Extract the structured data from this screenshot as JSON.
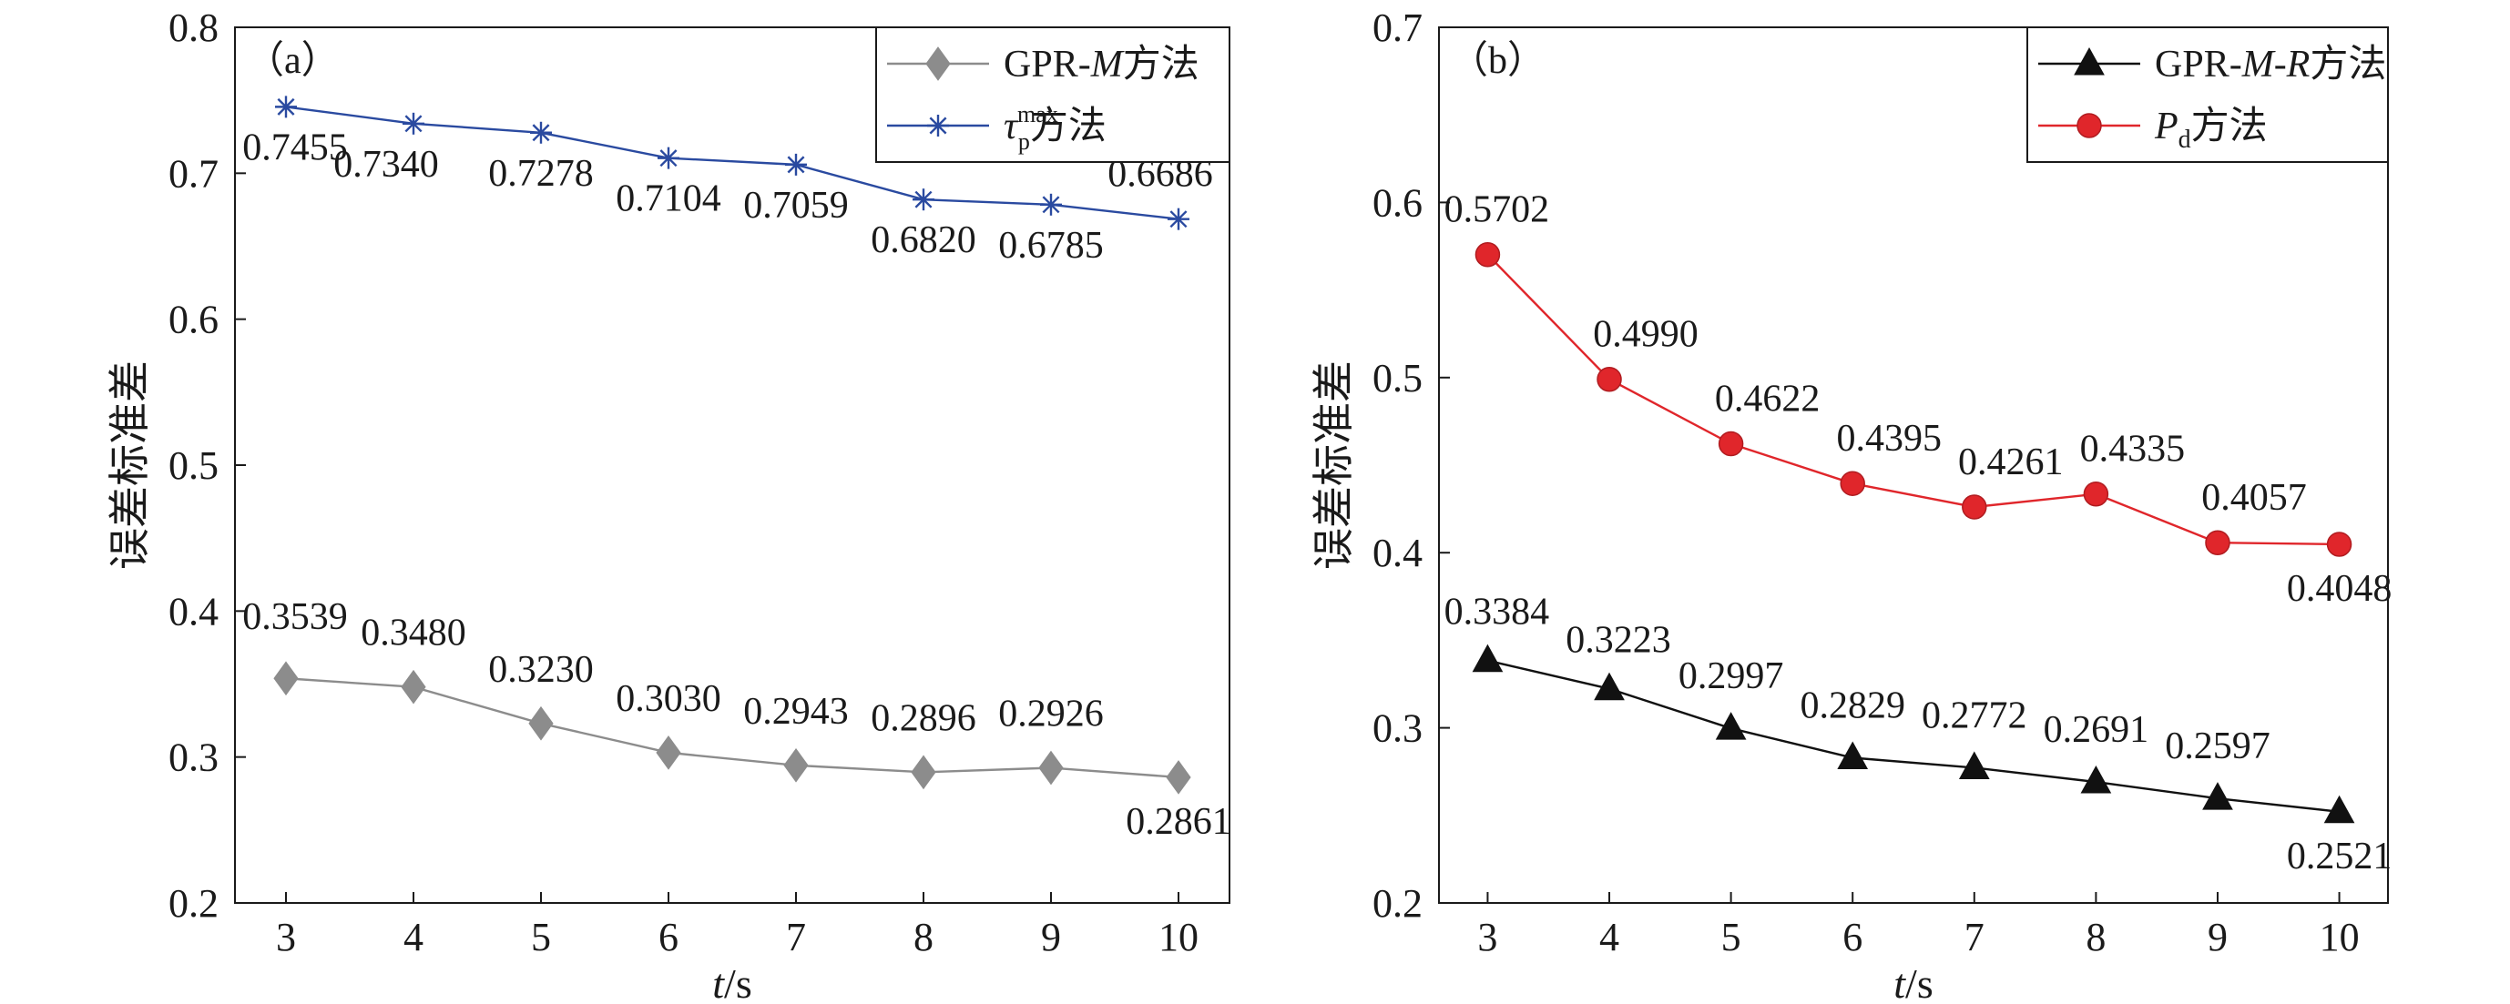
{
  "chart_data": [
    {
      "type": "line",
      "panel_label": "（a）",
      "x": [
        3,
        4,
        5,
        6,
        7,
        8,
        9,
        10
      ],
      "xlim": [
        2.6,
        10.4
      ],
      "ylim": [
        0.2,
        0.8
      ],
      "xticks": [
        "3",
        "4",
        "5",
        "6",
        "7",
        "8",
        "9",
        "10"
      ],
      "yticks": [
        "0.2",
        "0.3",
        "0.4",
        "0.5",
        "0.6",
        "0.7",
        "0.8"
      ],
      "ytick_values": [
        0.2,
        0.3,
        0.4,
        0.5,
        0.6,
        0.7,
        0.8
      ],
      "xlabel_italic": "t",
      "xlabel_unit": "/s",
      "ylabel": "误差标准差",
      "legend_position": "top-right",
      "grid": false,
      "series": [
        {
          "name_prefix": "GPR-",
          "name_italic": "M",
          "name_suffix": "方法",
          "color": "#8c8c8c",
          "marker": "diamond",
          "values": [
            0.3539,
            0.348,
            0.323,
            0.303,
            0.2943,
            0.2896,
            0.2926,
            0.2861
          ],
          "labels": [
            "0.3539",
            "0.3480",
            "0.3230",
            "0.3030",
            "0.2943",
            "0.2896",
            "0.2926",
            "0.2861"
          ]
        },
        {
          "name_symbol": "τ",
          "name_sub": "p",
          "name_sup": "max",
          "name_suffix": "方法",
          "color": "#2a4aa0",
          "marker": "asterisk",
          "values": [
            0.7455,
            0.734,
            0.7278,
            0.7104,
            0.7059,
            0.682,
            0.6785,
            0.6686
          ],
          "labels": [
            "0.7455",
            "0.7340",
            "0.7278",
            "0.7104",
            "0.7059",
            "0.6820",
            "0.6785",
            "0.6686"
          ]
        }
      ]
    },
    {
      "type": "line",
      "panel_label": "（b）",
      "x": [
        3,
        4,
        5,
        6,
        7,
        8,
        9,
        10
      ],
      "xlim": [
        2.6,
        10.4
      ],
      "ylim": [
        0.2,
        0.7
      ],
      "xticks": [
        "3",
        "4",
        "5",
        "6",
        "7",
        "8",
        "9",
        "10"
      ],
      "yticks": [
        "0.2",
        "0.3",
        "0.4",
        "0.5",
        "0.6",
        "0.7"
      ],
      "ytick_values": [
        0.2,
        0.3,
        0.4,
        0.5,
        0.6,
        0.7
      ],
      "xlabel_italic": "t",
      "xlabel_unit": "/s",
      "ylabel": "误差标准差",
      "legend_position": "top-right",
      "grid": false,
      "series": [
        {
          "name_prefix": "GPR-",
          "name_italic": "M-R",
          "name_suffix": "方法",
          "color": "#111111",
          "marker": "triangle",
          "values": [
            0.3384,
            0.3223,
            0.2997,
            0.2829,
            0.2772,
            0.2691,
            0.2597,
            0.2521
          ],
          "labels": [
            "0.3384",
            "0.3223",
            "0.2997",
            "0.2829",
            "0.2772",
            "0.2691",
            "0.2597",
            "0.2521"
          ]
        },
        {
          "name_italic": "P",
          "name_sub": "d",
          "name_suffix": "方法",
          "color": "#e0262b",
          "marker": "circle",
          "values": [
            0.5702,
            0.499,
            0.4622,
            0.4395,
            0.4261,
            0.4335,
            0.4057,
            0.4048
          ],
          "labels": [
            "0.5702",
            "0.4990",
            "0.4622",
            "0.4395",
            "0.4261",
            "0.4335",
            "0.4057",
            "0.4048"
          ]
        }
      ]
    }
  ]
}
